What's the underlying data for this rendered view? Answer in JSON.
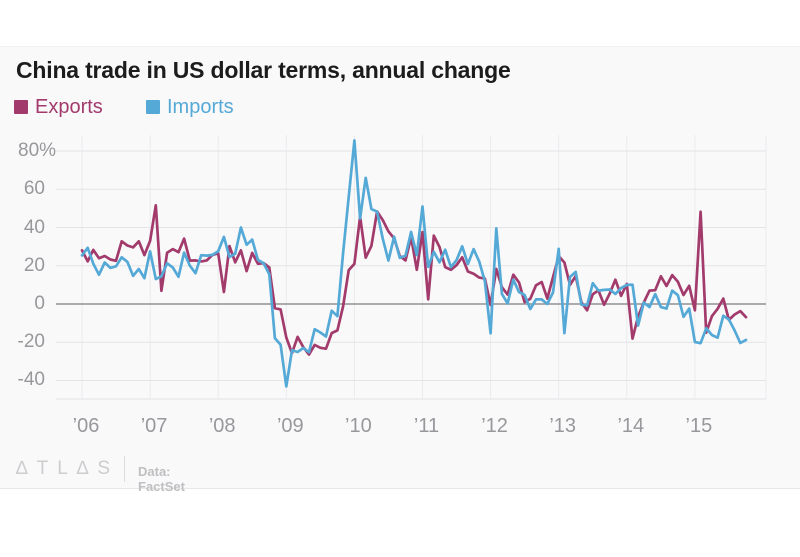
{
  "chart_data": {
    "type": "line",
    "title": "China trade in US dollar terms, annual change",
    "unit": "% change year-over-year",
    "frequency": "monthly",
    "x_start": "2006-01",
    "x_end": "2015-10",
    "grid": true,
    "legend_position": "top-left",
    "ylim": [
      -49,
      88
    ],
    "yticks": [
      {
        "label": "80%",
        "value": 80
      },
      {
        "label": "60",
        "value": 60
      },
      {
        "label": "40",
        "value": 40
      },
      {
        "label": "20",
        "value": 20
      },
      {
        "label": "0",
        "value": 0
      },
      {
        "label": "-20",
        "value": -20
      },
      {
        "label": "-40",
        "value": -40
      }
    ],
    "xticks": [
      {
        "label": "’06",
        "year": 2006
      },
      {
        "label": "’07",
        "year": 2007
      },
      {
        "label": "’08",
        "year": 2008
      },
      {
        "label": "’09",
        "year": 2009
      },
      {
        "label": "’10",
        "year": 2010
      },
      {
        "label": "’11",
        "year": 2011
      },
      {
        "label": "’12",
        "year": 2012
      },
      {
        "label": "’13",
        "year": 2013
      },
      {
        "label": "’14",
        "year": 2014
      },
      {
        "label": "’15",
        "year": 2015
      }
    ],
    "series": [
      {
        "name": "Exports",
        "color": "#a23b6c",
        "values": [
          28.1,
          22.3,
          28.3,
          23.9,
          25.1,
          23.3,
          22.6,
          32.8,
          30.6,
          29.6,
          32.8,
          25.6,
          33.0,
          51.6,
          6.9,
          26.8,
          28.7,
          27.1,
          34.2,
          22.7,
          22.8,
          22.3,
          22.8,
          25.7,
          26.5,
          6.3,
          30.3,
          21.8,
          28.1,
          17.2,
          26.7,
          21.0,
          21.4,
          19.1,
          -2.2,
          -2.8,
          -17.5,
          -25.7,
          -17.2,
          -22.6,
          -26.4,
          -21.4,
          -22.9,
          -23.4,
          -15.2,
          -13.8,
          -1.2,
          17.7,
          21.0,
          45.7,
          24.2,
          30.4,
          48.4,
          43.9,
          38.0,
          34.3,
          25.1,
          22.8,
          34.9,
          17.9,
          37.6,
          2.4,
          35.8,
          29.8,
          19.3,
          17.9,
          20.3,
          24.4,
          17.0,
          15.8,
          13.8,
          13.3,
          -0.5,
          18.3,
          8.8,
          4.9,
          15.3,
          11.3,
          1.0,
          2.7,
          9.8,
          11.5,
          2.8,
          14.0,
          25.0,
          21.7,
          10.0,
          14.6,
          0.9,
          -3.3,
          5.1,
          7.1,
          -0.4,
          5.6,
          12.7,
          4.3,
          10.5,
          -18.1,
          -6.6,
          0.8,
          7.0,
          7.2,
          14.5,
          9.4,
          15.1,
          11.6,
          4.7,
          9.5,
          -3.3,
          48.3,
          -15.0,
          -6.4,
          -2.5,
          2.8,
          -8.3,
          -5.5,
          -3.7,
          -6.9
        ]
      },
      {
        "name": "Imports",
        "color": "#55a9d6",
        "values": [
          25.4,
          29.4,
          21.1,
          15.3,
          21.7,
          18.9,
          19.7,
          24.4,
          22.0,
          14.7,
          18.3,
          13.5,
          27.5,
          13.1,
          14.5,
          21.3,
          19.1,
          14.2,
          26.9,
          20.1,
          16.1,
          25.5,
          25.3,
          25.7,
          27.6,
          35.1,
          24.6,
          26.3,
          40.0,
          31.0,
          33.7,
          23.1,
          21.3,
          15.6,
          -17.9,
          -21.3,
          -43.1,
          -24.1,
          -25.1,
          -23.0,
          -25.2,
          -13.2,
          -14.9,
          -17.0,
          -3.5,
          -6.4,
          26.7,
          55.9,
          85.5,
          44.7,
          66.0,
          49.7,
          48.3,
          34.1,
          22.7,
          35.2,
          24.1,
          25.3,
          37.7,
          25.6,
          51.0,
          19.4,
          27.3,
          21.8,
          28.4,
          19.3,
          22.9,
          30.2,
          20.9,
          28.7,
          22.1,
          11.8,
          -15.3,
          39.6,
          5.3,
          0.3,
          12.7,
          6.3,
          4.7,
          -2.6,
          2.4,
          2.4,
          0.0,
          6.0,
          28.8,
          -15.2,
          14.1,
          16.8,
          -0.3,
          -0.7,
          10.9,
          7.0,
          7.4,
          7.6,
          5.3,
          8.3,
          10.0,
          10.1,
          -11.3,
          0.8,
          -1.6,
          5.2,
          -1.6,
          -2.4,
          7.0,
          4.6,
          -6.7,
          -2.4,
          -19.9,
          -20.5,
          -12.7,
          -16.2,
          -17.6,
          -6.1,
          -8.1,
          -13.8,
          -20.4,
          -18.8
        ]
      }
    ]
  },
  "legend": [
    {
      "label": "Exports",
      "color": "#a23b6c"
    },
    {
      "label": "Imports",
      "color": "#55a9d6"
    }
  ],
  "footer": {
    "logo_display": "∆TL∆S",
    "source": "Data: FactSet"
  },
  "colors": {
    "card_bg": "#f9f9fa",
    "grid_h": "#e4e4e6",
    "grid_v": "#ebebed",
    "zero_line": "#919194",
    "axis_text": "#98989c",
    "title_text": "#1c1c1c"
  }
}
